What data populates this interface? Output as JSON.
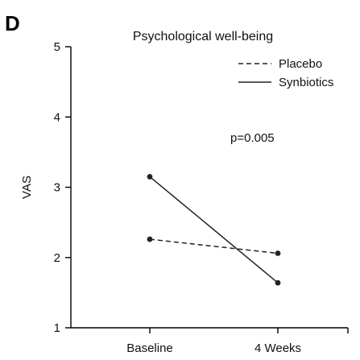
{
  "panel_label": "D",
  "chart_data": {
    "type": "line",
    "title": "Psychological well-being",
    "xlabel": "",
    "ylabel": "VAS",
    "categories": [
      "Baseline",
      "4 Weeks"
    ],
    "ylim": [
      1,
      5
    ],
    "yticks": [
      "1",
      "2",
      "3",
      "4",
      "5"
    ],
    "grid": false,
    "legend_position": "top-right",
    "series": [
      {
        "name": "Placebo",
        "values": [
          2.26,
          2.06
        ],
        "line_style": "dashed",
        "color": "#222222"
      },
      {
        "name": "Synbiotics",
        "values": [
          3.15,
          1.64
        ],
        "line_style": "solid",
        "color": "#222222"
      }
    ],
    "annotation": "p=0.005"
  }
}
